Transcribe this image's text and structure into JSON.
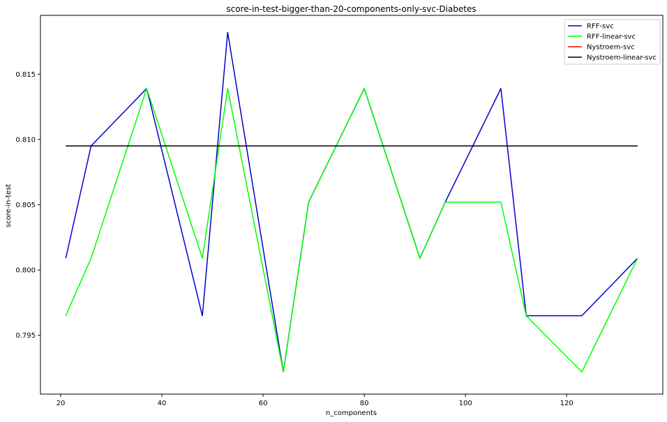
{
  "chart_data": {
    "type": "line",
    "title": "score-in-test-bigger-than-20-components-only-svc-Diabetes",
    "xlabel": "n_components",
    "ylabel": "score-in-test",
    "xlim": [
      16,
      139
    ],
    "ylim": [
      0.7905,
      0.8195
    ],
    "x_ticks": [
      20,
      40,
      60,
      80,
      100,
      120
    ],
    "y_ticks": [
      0.795,
      0.8,
      0.805,
      0.81,
      0.815
    ],
    "x_tick_labels": [
      "20",
      "40",
      "60",
      "80",
      "100",
      "120"
    ],
    "y_tick_labels": [
      "0.795",
      "0.800",
      "0.805",
      "0.810",
      "0.815"
    ],
    "grid": false,
    "legend_position": "top-right",
    "x": [
      21,
      26,
      37,
      48,
      53,
      64,
      69,
      80,
      91,
      96,
      107,
      112,
      123,
      134
    ],
    "series": [
      {
        "name": "RFF-svc",
        "color": "#0000cc",
        "values": [
          0.8009,
          0.8095,
          0.8139,
          0.7965,
          0.8182,
          0.7922,
          0.8052,
          0.8139,
          0.8009,
          0.8052,
          0.8139,
          0.7965,
          0.7965,
          0.8009
        ]
      },
      {
        "name": "RFF-linear-svc",
        "color": "#00ff00",
        "values": [
          0.7965,
          0.8009,
          0.8139,
          0.8009,
          0.8139,
          0.7922,
          0.8052,
          0.8139,
          0.8009,
          0.8052,
          0.8052,
          0.7965,
          0.7922,
          0.8009
        ]
      },
      {
        "name": "Nystroem-svc",
        "color": "#ff0000",
        "values": [
          0.8095,
          0.8095,
          0.8095,
          0.8095,
          0.8095,
          0.8095,
          0.8095,
          0.8095,
          0.8095,
          0.8095,
          0.8095,
          0.8095,
          0.8095,
          0.8095
        ]
      },
      {
        "name": "Nystroem-linear-svc",
        "color": "#000000",
        "values": [
          0.8095,
          0.8095,
          0.8095,
          0.8095,
          0.8095,
          0.8095,
          0.8095,
          0.8095,
          0.8095,
          0.8095,
          0.8095,
          0.8095,
          0.8095,
          0.8095
        ]
      }
    ]
  }
}
